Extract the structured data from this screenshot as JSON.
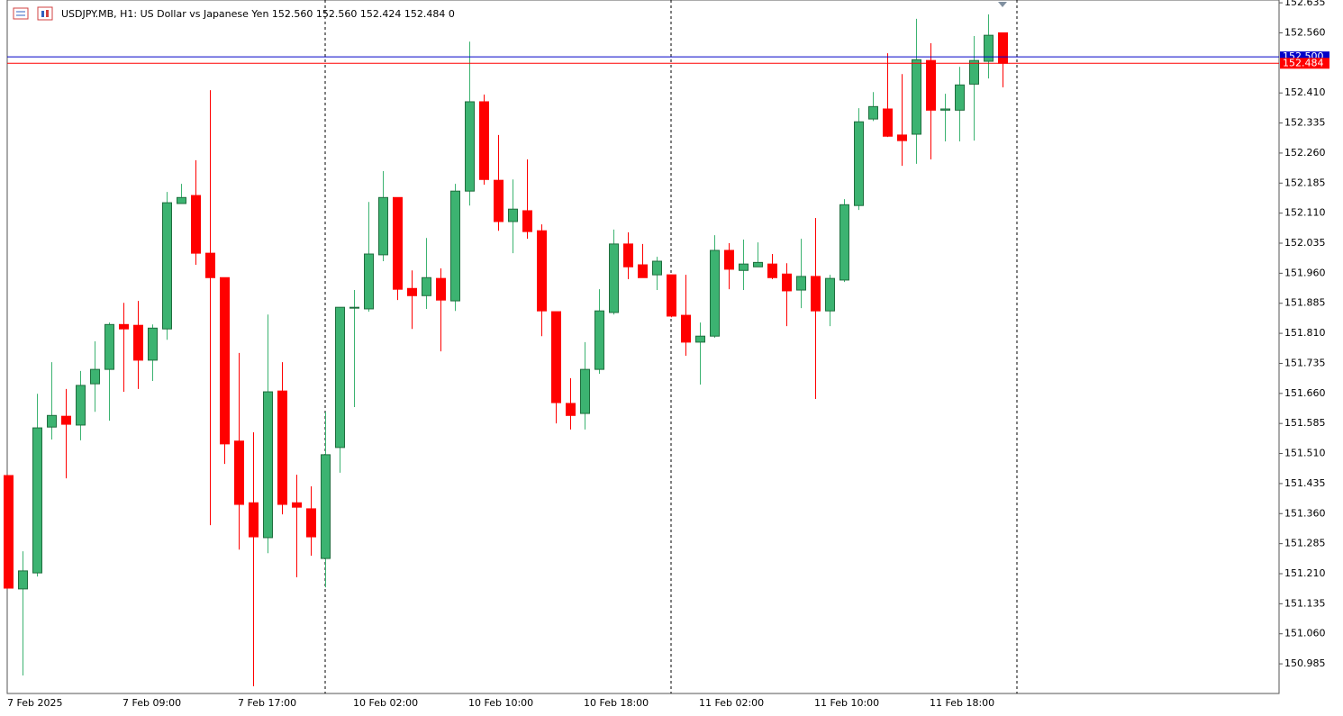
{
  "chart_data": {
    "type": "candlestick",
    "title": "USDJPY.MB, H1:  US Dollar vs Japanese Yen  152.560 152.560 152.424 152.484  0",
    "categories": [
      "7 Feb 2025",
      null,
      null,
      null,
      null,
      null,
      null,
      null,
      "7 Feb 09:00",
      null,
      null,
      null,
      null,
      null,
      null,
      null,
      "7 Feb 17:00",
      null,
      null,
      null,
      null,
      null,
      null,
      null,
      "10 Feb 02:00",
      null,
      null,
      null,
      null,
      null,
      null,
      null,
      "10 Feb 10:00",
      null,
      null,
      null,
      null,
      null,
      null,
      null,
      "10 Feb 18:00",
      null,
      null,
      null,
      null,
      null,
      null,
      null,
      "11 Feb 02:00",
      null,
      null,
      null,
      null,
      null,
      null,
      null,
      "11 Feb 10:00",
      null,
      null,
      null,
      null,
      null,
      null,
      null,
      "11 Feb 18:00",
      null,
      null,
      null,
      null,
      null
    ],
    "open": [
      151.455,
      151.172,
      151.212,
      151.576,
      151.603,
      151.581,
      151.684,
      151.72,
      151.832,
      151.83,
      151.743,
      151.821,
      152.134,
      152.154,
      152.01,
      151.949,
      151.541,
      151.387,
      151.3,
      151.666,
      151.387,
      151.372,
      151.248,
      151.525,
      151.873,
      151.871,
      152.006,
      152.149,
      151.922,
      151.904,
      151.947,
      151.891,
      152.165,
      152.388,
      152.192,
      152.089,
      152.116,
      152.066,
      151.864,
      151.635,
      151.61,
      151.72,
      151.862,
      152.033,
      151.981,
      151.956,
      151.956,
      151.855,
      151.788,
      151.803,
      152.017,
      151.967,
      151.976,
      151.983,
      151.958,
      151.918,
      151.952,
      151.866,
      151.943,
      152.129,
      152.345,
      152.37,
      152.305,
      152.307,
      152.491,
      152.367,
      152.367,
      152.432,
      152.489,
      152.56
    ],
    "high": [
      151.455,
      151.266,
      151.659,
      151.738,
      151.671,
      151.716,
      151.79,
      151.837,
      151.886,
      151.891,
      151.832,
      152.163,
      152.183,
      152.242,
      152.417,
      151.949,
      151.761,
      151.563,
      151.857,
      151.738,
      151.457,
      151.428,
      151.614,
      151.875,
      151.918,
      152.138,
      152.215,
      152.149,
      151.967,
      152.048,
      151.972,
      152.183,
      152.538,
      152.406,
      152.305,
      152.194,
      152.244,
      152.082,
      151.864,
      151.698,
      151.788,
      151.92,
      152.069,
      152.062,
      152.033,
      152.001,
      151.956,
      151.956,
      151.837,
      152.055,
      152.035,
      152.044,
      152.037,
      152.008,
      151.985,
      152.046,
      152.098,
      151.956,
      152.145,
      152.372,
      152.412,
      152.509,
      152.457,
      152.595,
      152.534,
      152.408,
      152.475,
      152.552,
      152.606,
      152.56
    ],
    "low": [
      151.174,
      150.956,
      151.203,
      151.545,
      151.448,
      151.543,
      151.614,
      151.592,
      151.664,
      151.671,
      151.691,
      151.794,
      152.134,
      151.981,
      151.331,
      151.484,
      151.27,
      150.929,
      151.261,
      151.358,
      151.201,
      151.255,
      151.176,
      151.462,
      151.626,
      151.864,
      151.99,
      151.893,
      151.821,
      151.871,
      151.765,
      151.866,
      152.129,
      152.181,
      152.066,
      152.01,
      152.046,
      151.803,
      151.585,
      151.57,
      151.57,
      151.709,
      151.857,
      151.945,
      151.949,
      151.918,
      151.85,
      151.754,
      151.682,
      151.799,
      151.92,
      151.918,
      151.976,
      151.945,
      151.828,
      151.873,
      151.646,
      151.828,
      151.938,
      152.118,
      152.34,
      152.3,
      152.228,
      152.233,
      152.244,
      152.289,
      152.289,
      152.291,
      152.446,
      152.424
    ],
    "close": [
      151.174,
      151.217,
      151.574,
      151.605,
      151.583,
      151.68,
      151.72,
      151.832,
      151.821,
      151.743,
      151.823,
      152.136,
      152.149,
      152.01,
      151.949,
      151.534,
      151.383,
      151.302,
      151.664,
      151.383,
      151.376,
      151.302,
      151.507,
      151.875,
      151.875,
      152.008,
      152.149,
      151.92,
      151.904,
      151.949,
      151.893,
      152.165,
      152.388,
      152.194,
      152.089,
      152.12,
      152.064,
      151.866,
      151.637,
      151.605,
      151.72,
      151.866,
      152.033,
      151.976,
      151.949,
      151.99,
      151.853,
      151.788,
      151.803,
      152.017,
      151.97,
      151.983,
      151.987,
      151.949,
      151.916,
      151.952,
      151.866,
      151.947,
      152.131,
      152.338,
      152.376,
      152.302,
      152.291,
      152.493,
      152.367,
      152.37,
      152.43,
      152.491,
      152.554,
      152.484
    ],
    "up_color": "#3cb371",
    "down_color": "#ff0000",
    "ylim": [
      150.911,
      152.642
    ],
    "yticks": [
      152.635,
      {
        "value": 152.56,
        "label": "152.560"
      },
      {
        "value": 152.41,
        "label": "152.410"
      },
      152.335,
      {
        "value": 152.26,
        "label": "152.260"
      },
      152.185,
      {
        "value": 152.11,
        "label": "152.110"
      },
      152.035,
      {
        "value": 151.96,
        "label": "151.960"
      },
      151.885,
      {
        "value": 151.81,
        "label": "151.810"
      },
      151.735,
      {
        "value": 151.66,
        "label": "151.660"
      },
      151.585,
      {
        "value": 151.51,
        "label": "151.510"
      },
      151.435,
      {
        "value": 151.36,
        "label": "151.360"
      },
      151.285,
      {
        "value": 151.21,
        "label": "151.210"
      },
      151.135,
      {
        "value": 151.06,
        "label": "151.060"
      },
      150.985
    ],
    "grid": false,
    "ask_line": {
      "value": 152.5,
      "label": "152.500",
      "color": "#0000c8"
    },
    "bid_line": {
      "value": 152.484,
      "color": "#ff0000"
    }
  }
}
